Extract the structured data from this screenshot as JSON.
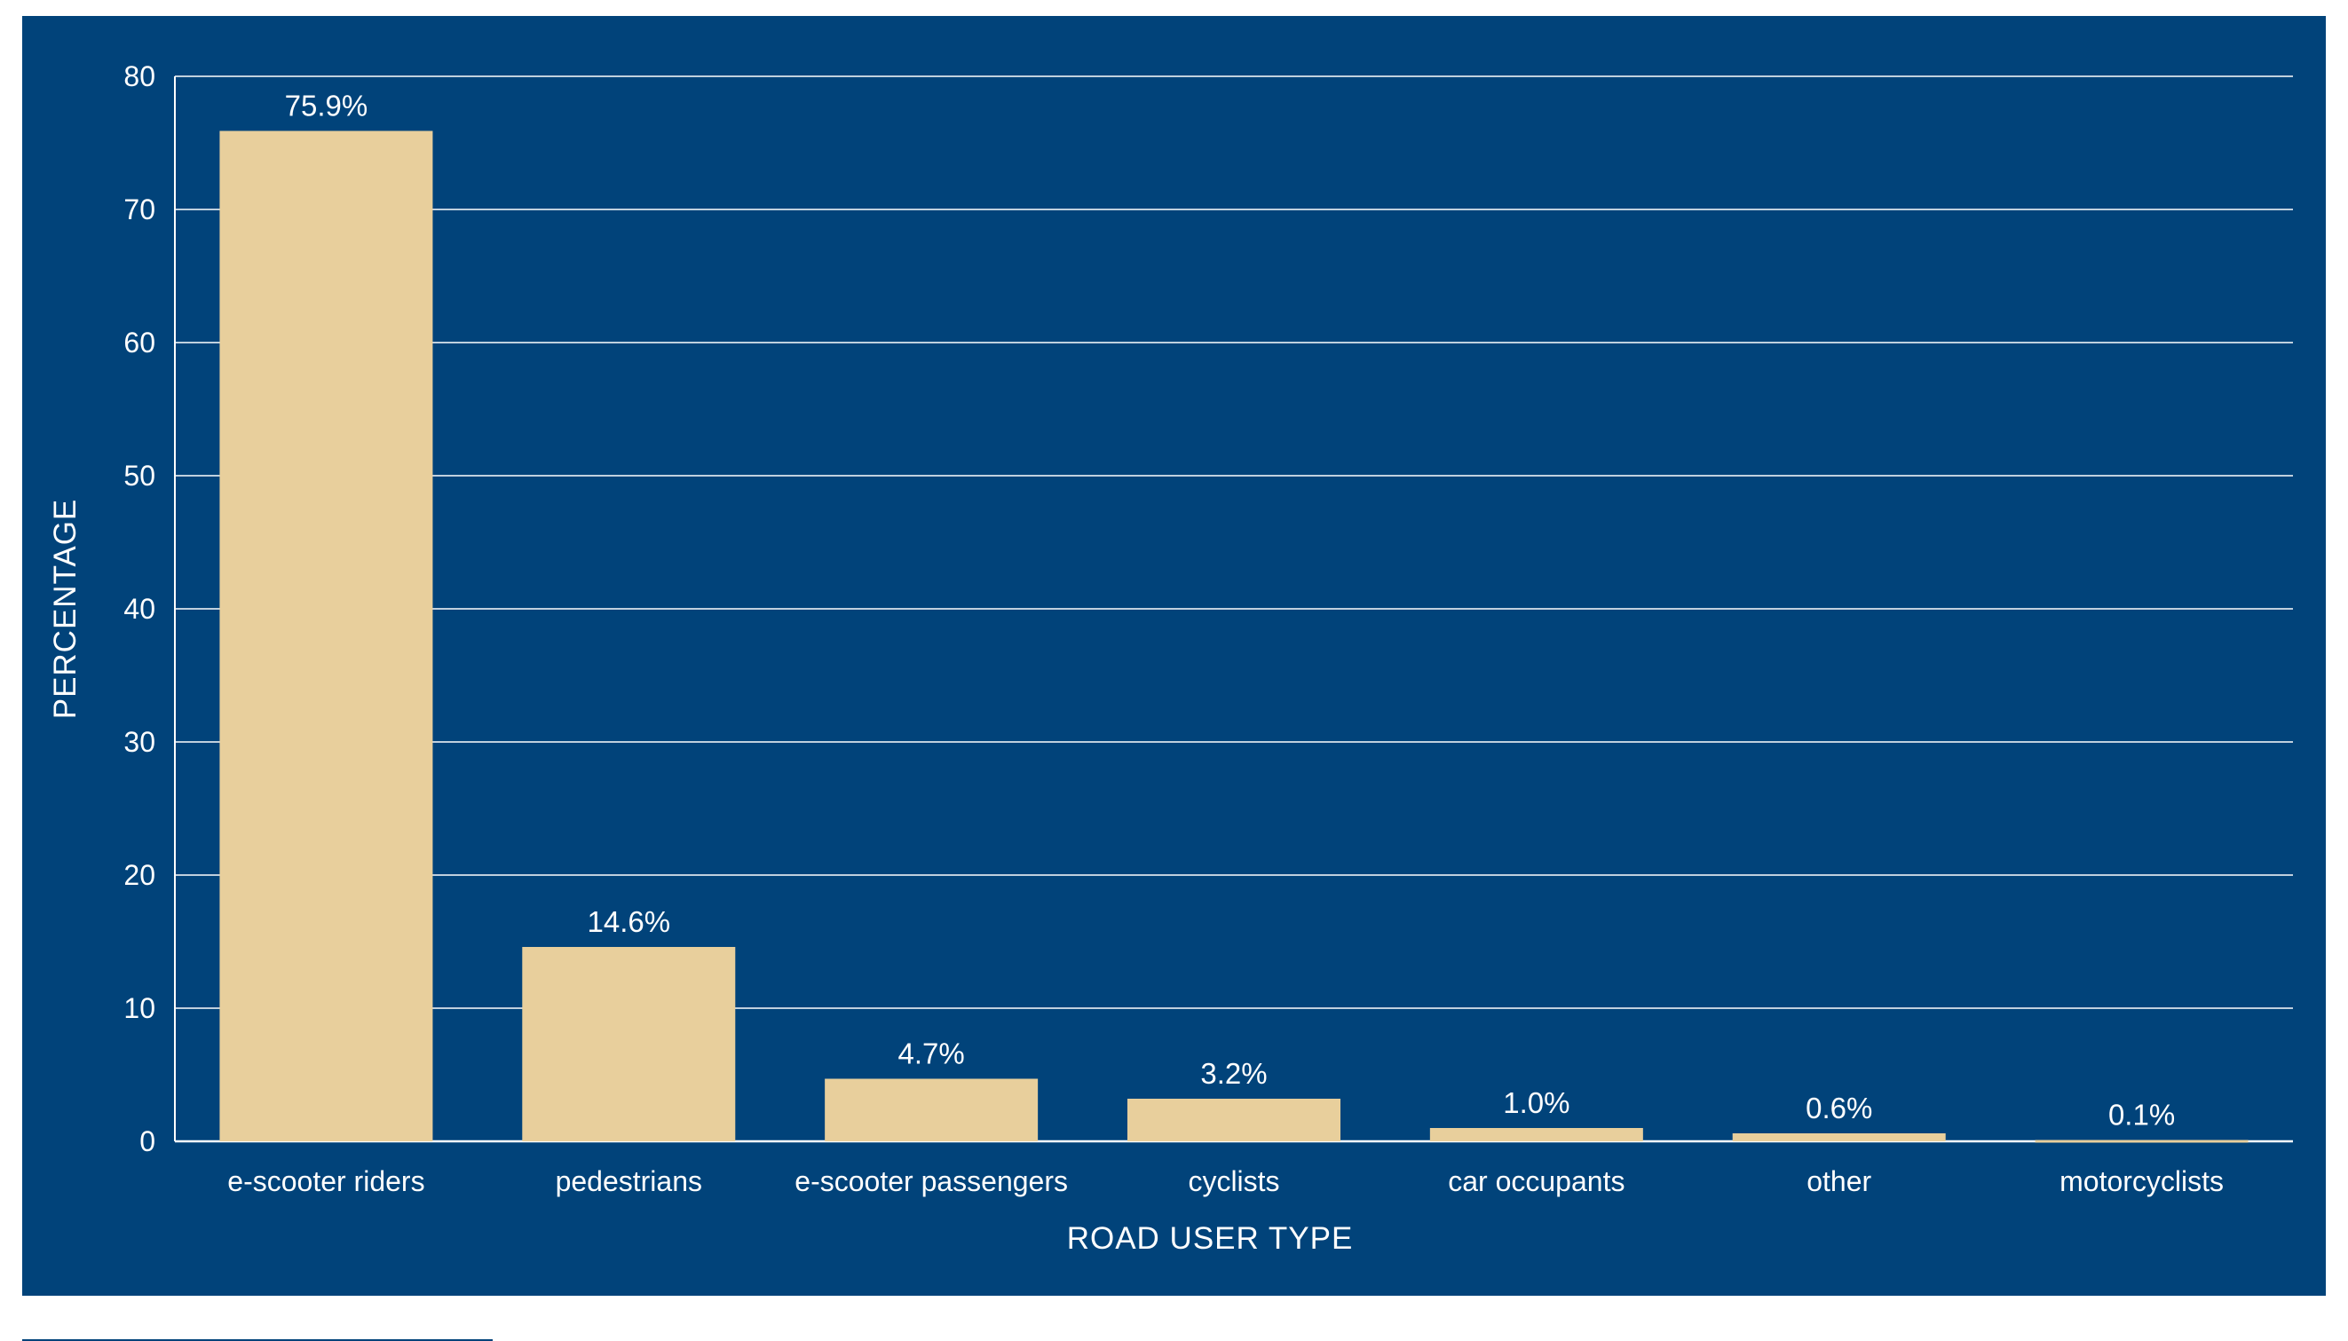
{
  "chart_data": {
    "type": "bar",
    "categories": [
      "e-scooter riders",
      "pedestrians",
      "e-scooter passengers",
      "cyclists",
      "car occupants",
      "other",
      "motorcyclists"
    ],
    "values": [
      75.9,
      14.6,
      4.7,
      3.2,
      1.0,
      0.6,
      0.1
    ],
    "data_labels": [
      "75.9%",
      "14.6%",
      "4.7%",
      "3.2%",
      "1.0%",
      "0.6%",
      "0.1%"
    ],
    "xlabel": "ROAD USER TYPE",
    "ylabel": "PERCENTAGE",
    "ylim": [
      0,
      80
    ],
    "yticks": [
      0,
      10,
      20,
      30,
      40,
      50,
      60,
      70,
      80
    ],
    "grid": true,
    "legend": "none",
    "colors": {
      "background": "#01437a",
      "bar": "#e8cf9c",
      "grid": "#ffffff",
      "text": "#ffffff"
    }
  }
}
